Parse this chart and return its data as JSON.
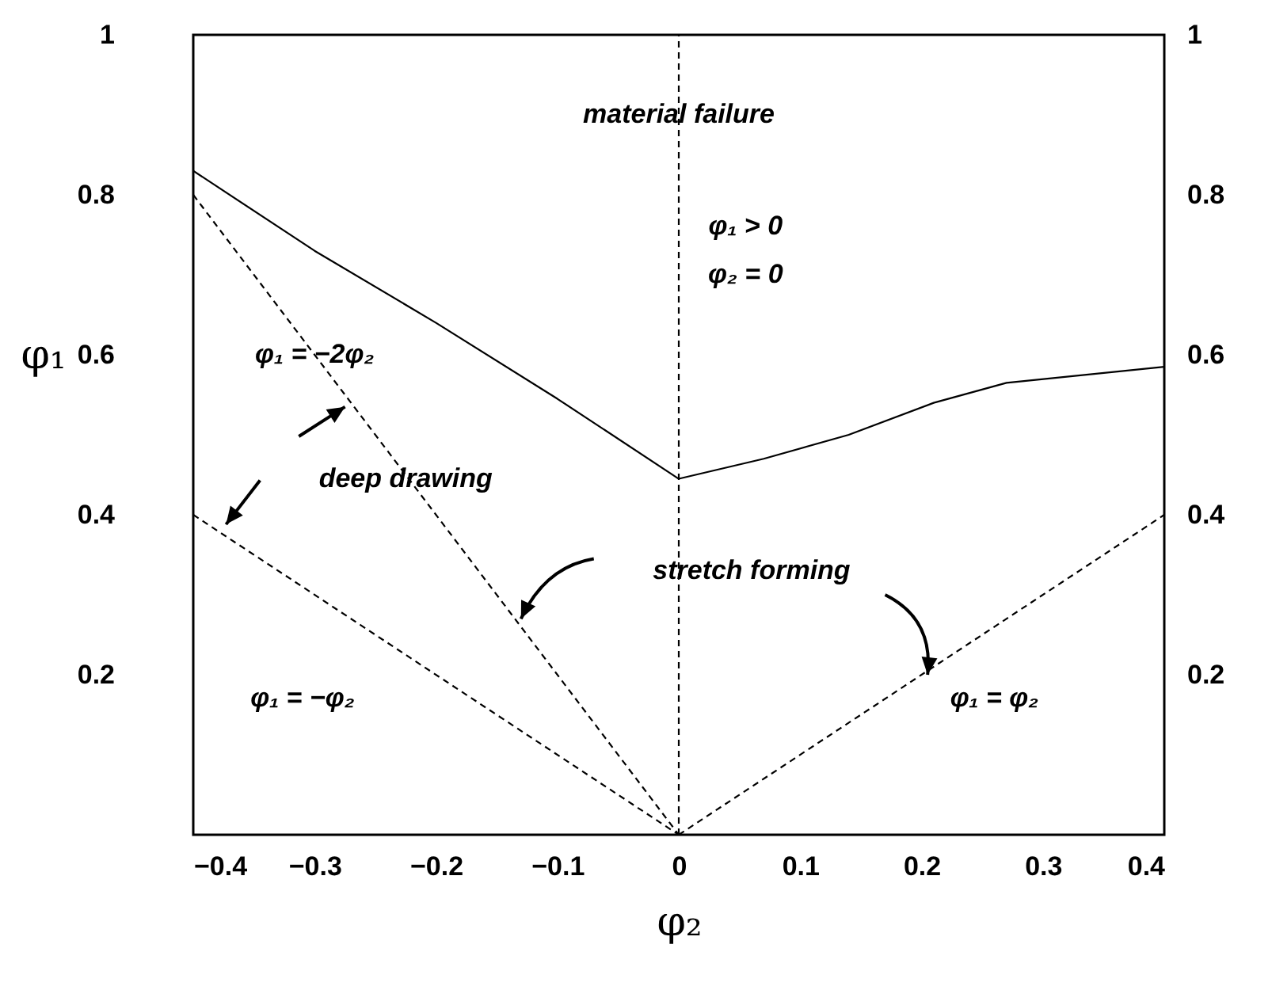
{
  "chart_data": {
    "type": "line",
    "xlabel": "φ₂",
    "ylabel": "φ₁",
    "xlim": [
      -0.4,
      0.4
    ],
    "xticks": [
      -0.4,
      -0.3,
      -0.2,
      -0.1,
      0,
      0.1,
      0.2,
      0.3,
      0.4
    ],
    "ylim": [
      0,
      1
    ],
    "yticks": [
      0.2,
      0.4,
      0.6,
      0.8,
      1
    ],
    "y2lim": [
      0,
      1
    ],
    "y2ticks": [
      0.2,
      0.4,
      0.6,
      0.8,
      1
    ],
    "grid": false,
    "marker": "none",
    "series": [
      {
        "color": "#000000",
        "line_style": "solid",
        "x": [
          -0.4,
          -0.3,
          -0.2,
          -0.1,
          0,
          0.07,
          0.14,
          0.21,
          0.27,
          0.4
        ],
        "values": [
          0.83,
          0.73,
          0.64,
          0.545,
          0.445,
          0.47,
          0.5,
          0.54,
          0.565,
          0.585
        ]
      },
      {
        "color": "#000000",
        "line_style": "dashed",
        "x": [
          -0.4,
          0
        ],
        "values": [
          0.8,
          0
        ]
      },
      {
        "color": "#000000",
        "line_style": "dashed",
        "x": [
          -0.4,
          0
        ],
        "values": [
          0.4,
          0
        ]
      },
      {
        "color": "#000000",
        "line_style": "dashed",
        "x": [
          0,
          0.4
        ],
        "values": [
          0,
          0.4
        ]
      }
    ],
    "ref_lines": [
      {
        "axis": "x",
        "value": 0,
        "color": "#000000",
        "line_style": "dashed"
      }
    ],
    "annotations": [
      "material failure",
      "φ₁ > 0",
      "φ₂ = 0",
      "φ₁ = −2φ₂",
      "deep drawing",
      "stretch  forming",
      "φ₁ = −φ₂",
      "φ₁ = φ₂"
    ]
  }
}
